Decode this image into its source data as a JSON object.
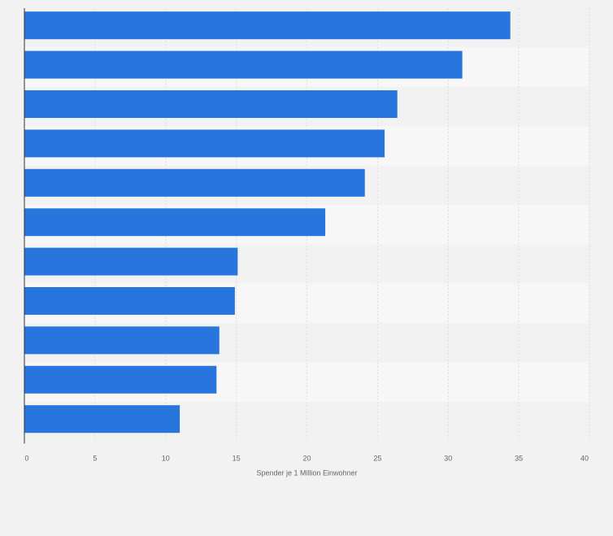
{
  "chart_data": {
    "type": "bar",
    "orientation": "horizontal",
    "categories": [
      "",
      "",
      "",
      "",
      "",
      "",
      "",
      "",
      "",
      "",
      ""
    ],
    "values": [
      34.4,
      31.0,
      26.4,
      25.5,
      24.1,
      21.3,
      15.1,
      14.9,
      13.8,
      13.6,
      11.0
    ],
    "xlabel": "Spender je 1 Million Einwohner",
    "ylabel": "",
    "xlim": [
      0,
      40
    ],
    "xticks": [
      0,
      5,
      10,
      15,
      20,
      25,
      30,
      35,
      40
    ],
    "xtick_labels": [
      "0",
      "5",
      "10",
      "15",
      "20",
      "25",
      "30",
      "35",
      "40"
    ],
    "grid": true,
    "colors": {
      "bar": "#2876dd",
      "background": "#f2f2f2",
      "band_light": "#f7f7f7",
      "band_dark": "#f2f2f2",
      "grid": "#dddddd",
      "axis": "#333333",
      "text": "#666666"
    }
  }
}
